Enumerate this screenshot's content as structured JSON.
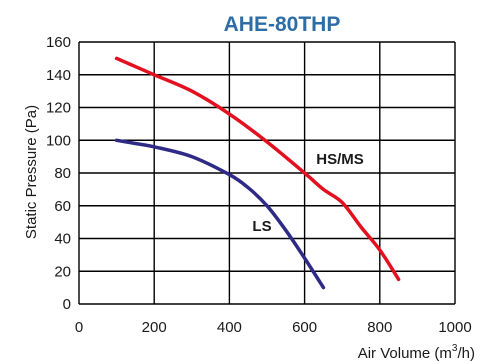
{
  "chart_data": {
    "type": "line",
    "title": "AHE-80THP",
    "xlabel": "Air Volume (m",
    "xlabel_sup": "3",
    "xlabel_end": "/h)",
    "ylabel": "Static Pressure (Pa)",
    "xlim": [
      0,
      1000
    ],
    "ylim": [
      0,
      160
    ],
    "xticks": [
      "0",
      "200",
      "400",
      "600",
      "800",
      "1000"
    ],
    "yticks": [
      "0",
      "20",
      "40",
      "60",
      "80",
      "100",
      "120",
      "140",
      "160"
    ],
    "grid": true,
    "series": [
      {
        "name": "HS/MS",
        "color": "#e3101f",
        "points": [
          [
            100,
            150
          ],
          [
            200,
            140
          ],
          [
            300,
            130
          ],
          [
            400,
            116
          ],
          [
            500,
            99
          ],
          [
            600,
            80
          ],
          [
            650,
            70
          ],
          [
            700,
            62
          ],
          [
            750,
            47
          ],
          [
            800,
            33
          ],
          [
            850,
            15
          ]
        ]
      },
      {
        "name": "LS",
        "color": "#2e2a86",
        "points": [
          [
            100,
            100
          ],
          [
            150,
            98
          ],
          [
            200,
            96
          ],
          [
            300,
            90
          ],
          [
            400,
            79
          ],
          [
            450,
            71
          ],
          [
            500,
            60
          ],
          [
            550,
            45
          ],
          [
            600,
            28
          ],
          [
            650,
            10
          ]
        ]
      }
    ],
    "colors": {
      "title": "#2e6da4",
      "text": "#1a1a1a"
    }
  }
}
